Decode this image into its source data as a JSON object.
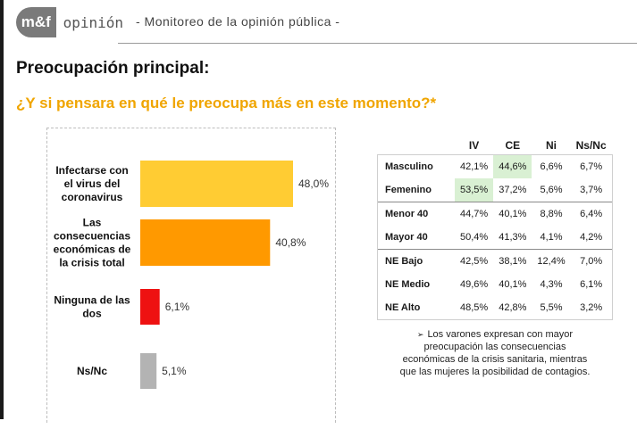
{
  "header": {
    "logo_mark": "m&f",
    "logo_word": "opinión",
    "subtitle": "- Monitoreo de la opinión pública -"
  },
  "title": "Preocupación principal:",
  "question": "¿Y si pensara en qué le preocupa más en este momento?*",
  "colors": {
    "accent": "#f0a500",
    "highlight": "#d9f0d3"
  },
  "chart_data": {
    "type": "bar",
    "orientation": "horizontal",
    "categories": [
      [
        "Infectarse con",
        "el virus del",
        "coronavirus"
      ],
      [
        "Las",
        "consecuencias",
        "económicas de",
        "la crisis total"
      ],
      [
        "Ninguna de las",
        "dos"
      ],
      [
        "Ns/Nc"
      ]
    ],
    "values": [
      48.0,
      40.8,
      6.1,
      5.1
    ],
    "value_labels": [
      "48,0%",
      "40,8%",
      "6,1%",
      "5,1%"
    ],
    "colors": [
      "#ffcc33",
      "#ff9900",
      "#ee1111",
      "#b3b3b3"
    ],
    "xlim": [
      0,
      60
    ]
  },
  "table": {
    "columns": [
      "IV",
      "CE",
      "Ni",
      "Ns/Nc"
    ],
    "groups": [
      {
        "rows": [
          {
            "label": "Masculino",
            "values": [
              "42,1%",
              "44,6%",
              "6,6%",
              "6,7%"
            ],
            "highlight": 1
          },
          {
            "label": "Femenino",
            "values": [
              "53,5%",
              "37,2%",
              "5,6%",
              "3,7%"
            ],
            "highlight": 0
          }
        ]
      },
      {
        "rows": [
          {
            "label": "Menor 40",
            "values": [
              "44,7%",
              "40,1%",
              "8,8%",
              "6,4%"
            ],
            "highlight": -1
          },
          {
            "label": "Mayor 40",
            "values": [
              "50,4%",
              "41,3%",
              "4,1%",
              "4,2%"
            ],
            "highlight": -1
          }
        ]
      },
      {
        "rows": [
          {
            "label": "NE Bajo",
            "values": [
              "42,5%",
              "38,1%",
              "12,4%",
              "7,0%"
            ],
            "highlight": -1
          },
          {
            "label": "NE Medio",
            "values": [
              "49,6%",
              "40,1%",
              "4,3%",
              "6,1%"
            ],
            "highlight": -1
          },
          {
            "label": "NE Alto",
            "values": [
              "48,5%",
              "42,8%",
              "5,5%",
              "3,2%"
            ],
            "highlight": -1
          }
        ]
      }
    ]
  },
  "note": {
    "arrow": "➢",
    "text": "Los varones expresan con mayor preocupación las consecuencias económicas de la crisis sanitaria, mientras que las mujeres la posibilidad de contagios."
  }
}
